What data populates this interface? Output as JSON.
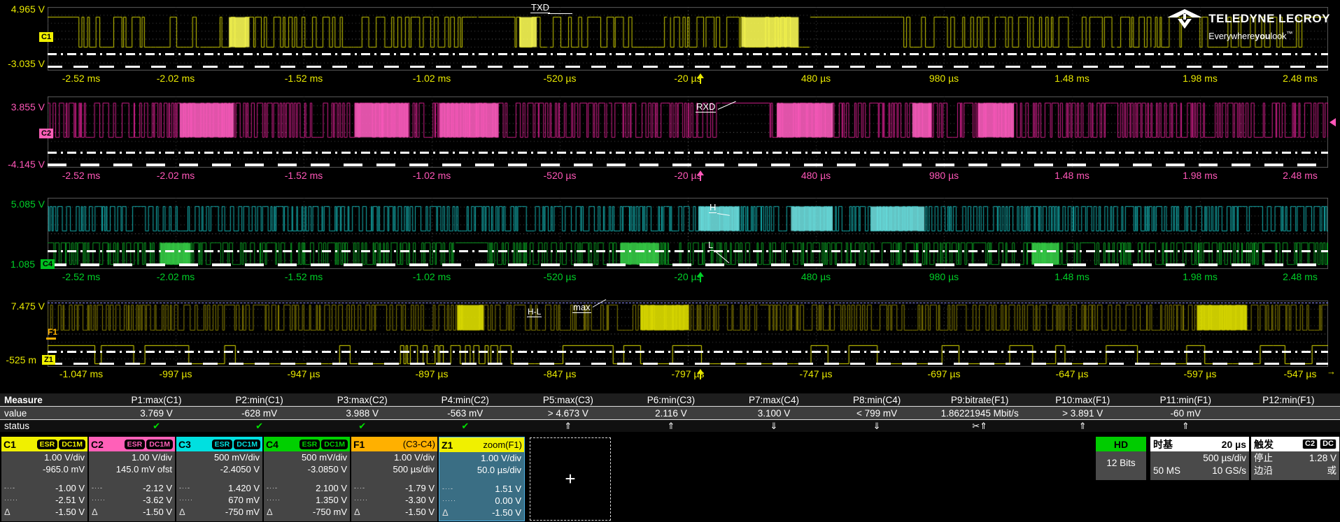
{
  "brand": {
    "name": "TELEDYNE LECROY",
    "tag_pre": "Everywhere",
    "tag_bold": "you",
    "tag_post": "look",
    "tm": "™"
  },
  "grids": [
    {
      "vtop": "4.965 V",
      "vbottom": "-3.035 V",
      "badge": "C1",
      "label_color": "#e8e800",
      "badge_bg": "#f0f000",
      "ticks": [
        "-2.52 ms",
        "-2.02 ms",
        "-1.52 ms",
        "-1.02 ms",
        "-520 µs",
        "-20 µs",
        "480 µs",
        "980 µs",
        "1.48 ms",
        "1.98 ms",
        "2.48 ms"
      ]
    },
    {
      "vtop": "3.855 V",
      "vbottom": "-4.145 V",
      "badge": "C2",
      "label_color": "#ff57b8",
      "badge_bg": "#ff60b8",
      "ticks": [
        "-2.52 ms",
        "-2.02 ms",
        "-1.52 ms",
        "-1.02 ms",
        "-520 µs",
        "-20 µs",
        "480 µs",
        "980 µs",
        "1.48 ms",
        "1.98 ms",
        "2.48 ms"
      ]
    },
    {
      "vtop": "5.085 V",
      "vbottom": "1.085",
      "badge": "C4",
      "label_color": "#00d028",
      "badge_bg": "#00c020",
      "ticks": [
        "-2.52 ms",
        "-2.02 ms",
        "-1.52 ms",
        "-1.02 ms",
        "-520 µs",
        "-20 µs",
        "480 µs",
        "980 µs",
        "1.48 ms",
        "1.98 ms",
        "2.48 ms"
      ]
    },
    {
      "vtop": "7.475 V",
      "vbottom": "-525 m",
      "badge": "Z1",
      "label_color": "#e8e800",
      "badge_bg": "#f0f000",
      "ticks": [
        "-1.047 ms",
        "-997 µs",
        "-947 µs",
        "-897 µs",
        "-847 µs",
        "-797 µs",
        "-747 µs",
        "-697 µs",
        "-647 µs",
        "-597 µs",
        "-547 µs"
      ]
    }
  ],
  "annotations": {
    "txd": "TXD",
    "rxd": "RXD",
    "h": "H",
    "l": "L",
    "hl": "H-L",
    "max": "max",
    "f1": "F1",
    "end_arrow": "→"
  },
  "measure": {
    "row_labels": [
      "Measure",
      "value",
      "status"
    ],
    "cols": [
      {
        "label": "P1:max(C1)",
        "value": "3.769 V",
        "status": "✔",
        "kind": "check"
      },
      {
        "label": "P2:min(C1)",
        "value": "-628 mV",
        "status": "✔",
        "kind": "check"
      },
      {
        "label": "P3:max(C2)",
        "value": "3.988 V",
        "status": "✔",
        "kind": "check"
      },
      {
        "label": "P4:min(C2)",
        "value": "-563 mV",
        "status": "✔",
        "kind": "check"
      },
      {
        "label": "P5:max(C3)",
        "value": "> 4.673 V",
        "status": "⇑",
        "kind": "arrow"
      },
      {
        "label": "P6:min(C3)",
        "value": "2.116 V",
        "status": "⇑",
        "kind": "arrow"
      },
      {
        "label": "P7:max(C4)",
        "value": "3.100 V",
        "status": "⇓",
        "kind": "arrow"
      },
      {
        "label": "P8:min(C4)",
        "value": "< 799 mV",
        "status": "⇓",
        "kind": "arrow"
      },
      {
        "label": "P9:bitrate(F1)",
        "value": "1.86221945 Mbit/s",
        "status": "✂⇑",
        "kind": "arrow"
      },
      {
        "label": "P10:max(F1)",
        "value": "> 3.891 V",
        "status": "⇑",
        "kind": "arrow"
      },
      {
        "label": "P11:min(F1)",
        "value": "-60 mV",
        "status": "⇑",
        "kind": "arrow"
      },
      {
        "label": "P12:min(F1)",
        "value": "",
        "status": "",
        "kind": "disabled"
      }
    ]
  },
  "channels": [
    {
      "id": "C1",
      "badge1": "ESR",
      "badge2": "DC1M",
      "l1": "1.00 V/div",
      "l2": "-965.0 mV",
      "c1": "-1.00 V",
      "c2": "-2.51 V",
      "d": "-1.50 V",
      "accent": "#f0f000"
    },
    {
      "id": "C2",
      "badge1": "ESR",
      "badge2": "DC1M",
      "l1": "1.00 V/div",
      "l2": "145.0 mV ofst",
      "c1": "-2.12 V",
      "c2": "-3.62 V",
      "d": "-1.50 V",
      "accent": "#ff60b8"
    },
    {
      "id": "C3",
      "badge1": "ESR",
      "badge2": "DC1M",
      "l1": "500 mV/div",
      "l2": "-2.4050 V",
      "c1": "1.420 V",
      "c2": "670 mV",
      "d": "-750 mV",
      "accent": "#00e0e0"
    },
    {
      "id": "C4",
      "badge1": "ESR",
      "badge2": "DC1M",
      "l1": "500 mV/div",
      "l2": "-3.0850 V",
      "c1": "2.100 V",
      "c2": "1.350 V",
      "d": "-750 mV",
      "accent": "#00d000"
    },
    {
      "id": "F1",
      "source": "(C3-C4)",
      "l1": "1.00 V/div",
      "l2": "500 µs/div",
      "c1": "-1.79 V",
      "c2": "-3.30 V",
      "d": "-1.50 V",
      "accent": "#ffb000"
    },
    {
      "id": "Z1",
      "source": "zoom(F1)",
      "l1": "1.00 V/div",
      "l2": "50.0 µs/div",
      "c1": "1.51 V",
      "c2": "0.00 V",
      "d": "-1.50 V",
      "accent": "#f0f000"
    }
  ],
  "cursor_icons": {
    "dashdot": "-··-",
    "dotted": "·····",
    "delta": "Δ"
  },
  "add_trace": {
    "plus": "+"
  },
  "right_boxes": {
    "hd": {
      "title": "HD",
      "body": "12 Bits",
      "accent": "#00cc00"
    },
    "timebase": {
      "title": "时基",
      "tright": "20 µs",
      "line1": "500 µs/div",
      "l2l": "50 MS",
      "l2r": "10 GS/s"
    },
    "trigger": {
      "title": "触发",
      "pill1": "C2",
      "pill2": "DC",
      "r1l": "停止",
      "r1r": "1.28 V",
      "r2l": "边沿",
      "r2r": "或"
    }
  },
  "waveforms": {
    "g1": [
      {
        "style": "uart",
        "color": "#cfcf00",
        "bright": "#ffff55",
        "hi": 0.155,
        "lo": 0.63,
        "seed": 7,
        "nb": 3
      }
    ],
    "g2": [
      {
        "style": "dense",
        "color": "#d41f8d",
        "bright": "#ff5fc0",
        "hi": 0.09,
        "lo": 0.57,
        "seed": 13,
        "nb": 6
      }
    ],
    "g3": [
      {
        "style": "dense",
        "color": "#14b4b4",
        "bright": "#6fe0e0",
        "hi": 0.12,
        "lo": 0.46,
        "seed": 21,
        "nb": 3
      },
      {
        "style": "dense",
        "color": "#0a9e22",
        "bright": "#38cf48",
        "hi": 0.63,
        "lo": 0.93,
        "seed": 29,
        "nb": 3
      }
    ],
    "g4": [
      {
        "style": "fdense",
        "color": "#8a8100",
        "bright": "#e6e600",
        "hi": 0.06,
        "lo": 0.44,
        "seed": 37,
        "nb": 3
      },
      {
        "style": "square",
        "color": "#e0e000",
        "hi": 0.67,
        "lo": 0.95,
        "seed": 43
      }
    ]
  }
}
